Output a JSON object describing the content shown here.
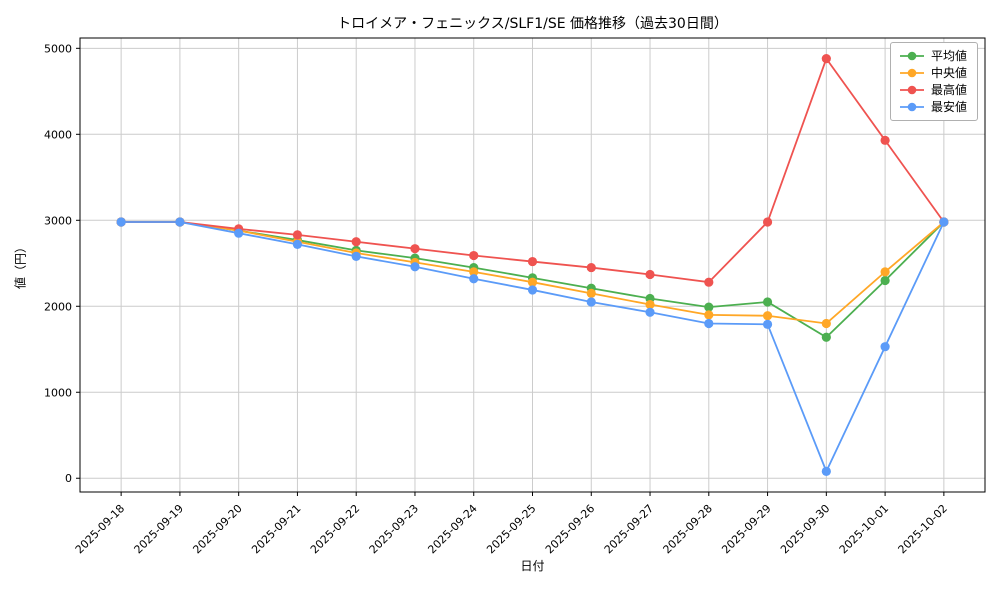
{
  "chart_data": {
    "type": "line",
    "title": "トロイメア・フェニックス/SLF1/SE 価格推移（過去30日間）",
    "xlabel": "日付",
    "ylabel": "値（円）",
    "grid": true,
    "legend_position": "upper right",
    "ylim": [
      -160,
      5120
    ],
    "yticks": [
      0,
      1000,
      2000,
      3000,
      4000,
      5000
    ],
    "categories": [
      "2025-09-18",
      "2025-09-19",
      "2025-09-20",
      "2025-09-21",
      "2025-09-22",
      "2025-09-23",
      "2025-09-24",
      "2025-09-25",
      "2025-09-26",
      "2025-09-27",
      "2025-09-28",
      "2025-09-29",
      "2025-09-30",
      "2025-10-01",
      "2025-10-02"
    ],
    "series": [
      {
        "key": "average",
        "name": "平均値",
        "color": "#4caf50",
        "values": [
          2980,
          2980,
          2880,
          2770,
          2650,
          2560,
          2450,
          2330,
          2210,
          2090,
          1990,
          2050,
          1640,
          2300,
          2980
        ]
      },
      {
        "key": "median",
        "name": "中央値",
        "color": "#ffa726",
        "values": [
          2980,
          2980,
          2880,
          2750,
          2620,
          2510,
          2400,
          2280,
          2150,
          2020,
          1900,
          1890,
          1800,
          2400,
          2980
        ]
      },
      {
        "key": "max",
        "name": "最高値",
        "color": "#ef5350",
        "values": [
          2980,
          2980,
          2900,
          2830,
          2750,
          2670,
          2590,
          2520,
          2450,
          2370,
          2280,
          2980,
          4880,
          3930,
          2980
        ]
      },
      {
        "key": "min",
        "name": "最安値",
        "color": "#5b9bf8",
        "values": [
          2980,
          2980,
          2850,
          2720,
          2580,
          2460,
          2320,
          2190,
          2050,
          1930,
          1800,
          1790,
          80,
          1530,
          2980
        ]
      }
    ],
    "colors": {
      "grid": "#cccccc",
      "spine": "#000000",
      "legend_border": "#b0b0b0"
    }
  }
}
